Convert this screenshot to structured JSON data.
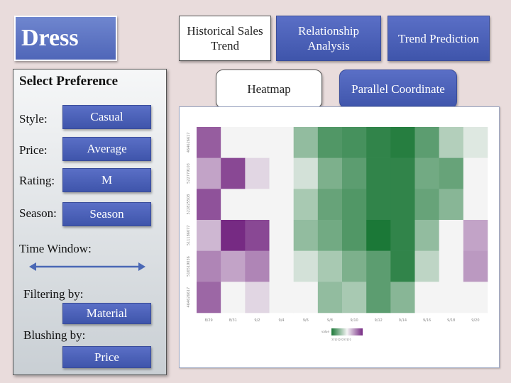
{
  "app": {
    "title": "Dress"
  },
  "views": {
    "historical": "Historical Sales Trend",
    "relationship": "Relationship Analysis",
    "trend": "Trend Prediction",
    "heatmap": "Heatmap",
    "parallel": "Parallel Coordinate"
  },
  "panel": {
    "title": "Select Preference",
    "style": {
      "label": "Style:",
      "value": "Casual"
    },
    "price": {
      "label": "Price:",
      "value": "Average"
    },
    "rating": {
      "label": "Rating:",
      "value": "M"
    },
    "season": {
      "label": "Season:",
      "value": "Season"
    },
    "time_window": {
      "label": "Time Window:"
    },
    "filtering": {
      "label": "Filtering by:",
      "value": "Material"
    },
    "blushing": {
      "label": "Blushing by:",
      "value": "Price"
    }
  },
  "colors": {
    "accent": "#4f66b8",
    "background": "#e9dcdc",
    "slider": "#4a68b5",
    "heat_neg": "#762a83",
    "heat_mid": "#f4f4f4",
    "heat_pos": "#1b7837"
  },
  "chart_data": {
    "type": "heatmap",
    "x_labels": [
      "8/29",
      "8/31",
      "9/2",
      "9/4",
      "9/6",
      "9/8",
      "9/10",
      "9/12",
      "9/14",
      "9/16",
      "9/18",
      "9/20"
    ],
    "y_labels": [
      "464626617",
      "522779103",
      "522825508",
      "511186077",
      "516519036",
      "464626617"
    ],
    "values": [
      [
        -0.75,
        0.0,
        0.0,
        0.0,
        0.45,
        0.75,
        0.8,
        0.9,
        0.95,
        0.7,
        0.3,
        0.1
      ],
      [
        -0.4,
        -0.85,
        -0.15,
        0.0,
        0.15,
        0.55,
        0.7,
        0.9,
        0.9,
        0.6,
        0.65,
        0.0
      ],
      [
        -0.8,
        0.0,
        0.0,
        0.0,
        0.35,
        0.65,
        0.75,
        0.9,
        0.9,
        0.65,
        0.5,
        0.0
      ],
      [
        -0.3,
        -1.0,
        -0.85,
        0.0,
        0.45,
        0.6,
        0.75,
        1.0,
        0.9,
        0.45,
        0.0,
        -0.4
      ],
      [
        -0.55,
        -0.4,
        -0.55,
        0.0,
        0.15,
        0.35,
        0.55,
        0.7,
        0.9,
        0.25,
        0.0,
        -0.45
      ],
      [
        -0.7,
        0.0,
        -0.15,
        0.0,
        0.0,
        0.45,
        0.35,
        0.7,
        0.5,
        0.0,
        0.0,
        0.0
      ]
    ],
    "legend_title": "value",
    "legend_range_label": "?????????????",
    "legend_range": [
      -1,
      1
    ]
  }
}
